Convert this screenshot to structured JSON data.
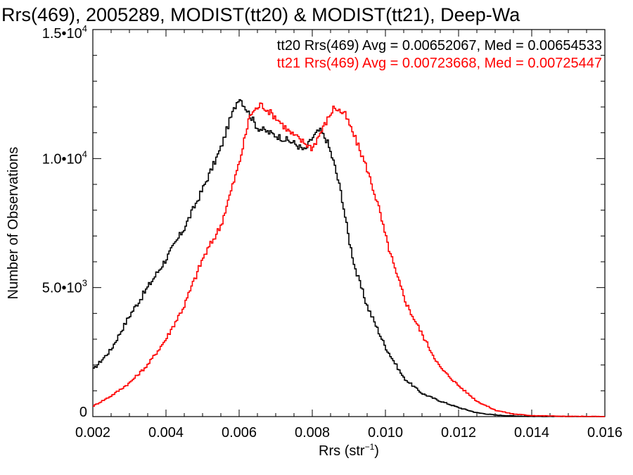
{
  "chart_data": {
    "type": "line",
    "title": "Rrs(469), 2005289, MODIST(tt20) & MODIST(tt21), Deep-Wa",
    "xlabel_main": "Rrs (str",
    "xlabel_sup": "−1",
    "xlabel_close": ")",
    "ylabel": "Number of Observations",
    "xlim": [
      0.002,
      0.016
    ],
    "ylim": [
      0,
      15000
    ],
    "x_ticks": [
      {
        "value": 0.002,
        "label": "0.002"
      },
      {
        "value": 0.004,
        "label": "0.004"
      },
      {
        "value": 0.006,
        "label": "0.006"
      },
      {
        "value": 0.008,
        "label": "0.008"
      },
      {
        "value": 0.01,
        "label": "0.010"
      },
      {
        "value": 0.012,
        "label": "0.012"
      },
      {
        "value": 0.014,
        "label": "0.014"
      },
      {
        "value": 0.016,
        "label": "0.016"
      }
    ],
    "y_ticks": [
      {
        "value": 0,
        "mant": "0",
        "exp": ""
      },
      {
        "value": 5000,
        "mant": "5.0•10",
        "exp": "3"
      },
      {
        "value": 10000,
        "mant": "1.0•10",
        "exp": "4"
      },
      {
        "value": 15000,
        "mant": "1.5•10",
        "exp": "4"
      }
    ],
    "series": [
      {
        "name": "tt20",
        "color": "#000000",
        "label": "tt20 Rrs(469) Avg = 0.00652067, Med = 0.00654533",
        "points": [
          [
            0.002,
            1800
          ],
          [
            0.0025,
            2600
          ],
          [
            0.003,
            3900
          ],
          [
            0.0035,
            5000
          ],
          [
            0.004,
            6100
          ],
          [
            0.0045,
            7300
          ],
          [
            0.005,
            8800
          ],
          [
            0.0055,
            10400
          ],
          [
            0.00575,
            11500
          ],
          [
            0.006,
            12400
          ],
          [
            0.00625,
            11800
          ],
          [
            0.0065,
            11200
          ],
          [
            0.007,
            10900
          ],
          [
            0.0075,
            10600
          ],
          [
            0.0078,
            10300
          ],
          [
            0.008,
            10800
          ],
          [
            0.0082,
            11100
          ],
          [
            0.0084,
            10700
          ],
          [
            0.0086,
            9800
          ],
          [
            0.0088,
            8600
          ],
          [
            0.009,
            6900
          ],
          [
            0.0092,
            5600
          ],
          [
            0.0095,
            4300
          ],
          [
            0.01,
            2700
          ],
          [
            0.0105,
            1500
          ],
          [
            0.011,
            900
          ],
          [
            0.0115,
            600
          ],
          [
            0.012,
            350
          ],
          [
            0.0125,
            150
          ],
          [
            0.013,
            60
          ],
          [
            0.0135,
            25
          ],
          [
            0.014,
            10
          ],
          [
            0.015,
            3
          ],
          [
            0.016,
            0
          ]
        ]
      },
      {
        "name": "tt21",
        "color": "#ff0000",
        "label": "tt21 Rrs(469) Avg = 0.00723668, Med = 0.00725447",
        "points": [
          [
            0.002,
            400
          ],
          [
            0.0025,
            800
          ],
          [
            0.003,
            1300
          ],
          [
            0.0035,
            2000
          ],
          [
            0.004,
            3000
          ],
          [
            0.0045,
            4300
          ],
          [
            0.005,
            6100
          ],
          [
            0.0055,
            7400
          ],
          [
            0.006,
            9800
          ],
          [
            0.0063,
            11700
          ],
          [
            0.0066,
            12100
          ],
          [
            0.007,
            11600
          ],
          [
            0.0074,
            11000
          ],
          [
            0.0077,
            10700
          ],
          [
            0.008,
            10400
          ],
          [
            0.0083,
            11200
          ],
          [
            0.0086,
            12000
          ],
          [
            0.0089,
            11700
          ],
          [
            0.0092,
            10700
          ],
          [
            0.0095,
            9600
          ],
          [
            0.0098,
            8200
          ],
          [
            0.01,
            7000
          ],
          [
            0.0103,
            5500
          ],
          [
            0.0106,
            4300
          ],
          [
            0.011,
            3200
          ],
          [
            0.0113,
            2400
          ],
          [
            0.0115,
            1900
          ],
          [
            0.012,
            1200
          ],
          [
            0.0125,
            600
          ],
          [
            0.013,
            250
          ],
          [
            0.0135,
            100
          ],
          [
            0.014,
            40
          ],
          [
            0.015,
            8
          ],
          [
            0.016,
            0
          ]
        ]
      }
    ]
  }
}
